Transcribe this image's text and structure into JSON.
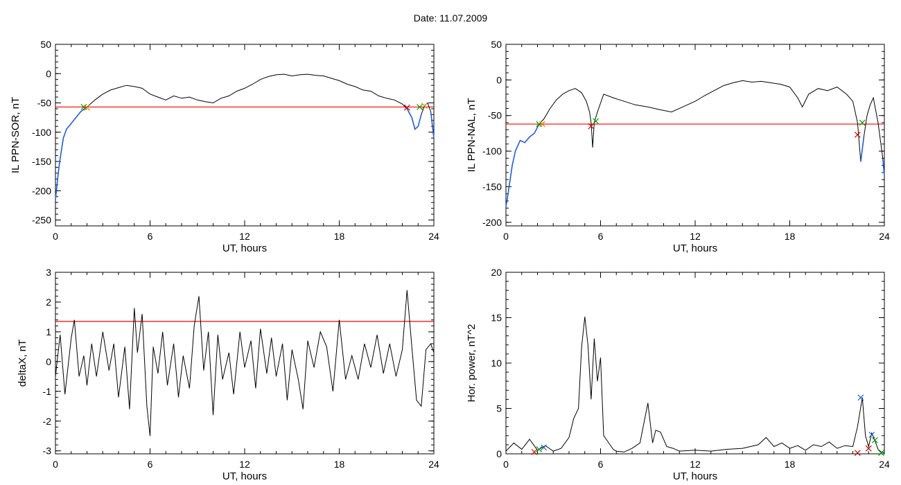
{
  "page": {
    "title": "Date:  11.07.2009"
  },
  "chart_data": [
    {
      "type": "line",
      "xlabel": "UT, hours",
      "ylabel": "IL PPN-SOR, nT",
      "xlim": [
        0,
        24
      ],
      "ylim": [
        -260,
        50
      ],
      "xticks": [
        "0",
        "6",
        "12",
        "18",
        "24"
      ],
      "yticks": [
        "50",
        "0",
        "-50",
        "-100",
        "-150",
        "-200",
        "-250"
      ],
      "threshold": -57,
      "colors": {
        "trace": "#000000",
        "below_threshold": "#1f5fd6",
        "threshold": "#ff0000",
        "marker_start": "#00a000",
        "marker_end": "#d00000",
        "marker_other": "#e08000"
      },
      "series": [
        {
          "x": [
            0,
            0.1,
            0.2,
            0.3,
            0.5,
            0.7,
            1.0,
            1.3,
            1.6,
            2.0,
            2.5,
            3.0,
            3.5,
            4.0,
            4.5,
            5.0,
            5.5,
            6.0,
            6.5,
            7.0,
            7.5,
            8.0,
            8.5,
            9.0,
            9.5,
            10.0,
            10.5,
            11.0,
            11.5,
            12.0,
            12.5,
            13.0,
            13.5,
            14.0,
            14.5,
            15.0,
            15.5,
            16.0,
            16.5,
            17.0,
            17.5,
            18.0,
            18.5,
            19.0,
            19.5,
            20.0,
            20.5,
            21.0,
            21.5,
            22.0,
            22.3,
            22.6,
            22.8,
            23.0,
            23.2,
            23.4,
            23.6,
            23.8,
            24.0
          ],
          "y": [
            -215,
            -190,
            -165,
            -145,
            -110,
            -95,
            -85,
            -75,
            -65,
            -57,
            -45,
            -35,
            -28,
            -24,
            -20,
            -22,
            -25,
            -35,
            -40,
            -45,
            -38,
            -42,
            -40,
            -45,
            -48,
            -50,
            -42,
            -38,
            -30,
            -25,
            -18,
            -10,
            -5,
            -2,
            -1,
            -4,
            -2,
            -1,
            -3,
            -4,
            -8,
            -12,
            -18,
            -22,
            -28,
            -30,
            -38,
            -42,
            -45,
            -52,
            -60,
            -75,
            -95,
            -90,
            -70,
            -55,
            -50,
            -65,
            -110
          ]
        }
      ],
      "markers": [
        {
          "x": 1.8,
          "y": -57,
          "color": "green"
        },
        {
          "x": 2.0,
          "y": -58,
          "color": "orange"
        },
        {
          "x": 22.3,
          "y": -58,
          "color": "red"
        },
        {
          "x": 23.1,
          "y": -57,
          "color": "green"
        },
        {
          "x": 23.4,
          "y": -55,
          "color": "orange"
        }
      ]
    },
    {
      "type": "line",
      "xlabel": "UT, hours",
      "ylabel": "IL PPN-NAL, nT",
      "xlim": [
        0,
        24
      ],
      "ylim": [
        -205,
        50
      ],
      "xticks": [
        "0",
        "6",
        "12",
        "18",
        "24"
      ],
      "yticks": [
        "50",
        "0",
        "-50",
        "-100",
        "-150",
        "-200"
      ],
      "threshold": -62,
      "colors": {
        "trace": "#000000",
        "below_threshold": "#1f5fd6",
        "threshold": "#ff0000",
        "marker_start": "#00a000",
        "marker_end": "#d00000",
        "marker_other": "#e08000"
      },
      "series": [
        {
          "x": [
            0,
            0.1,
            0.2,
            0.4,
            0.6,
            0.9,
            1.2,
            1.5,
            1.8,
            2.1,
            2.4,
            2.8,
            3.2,
            3.6,
            4.0,
            4.4,
            4.8,
            5.1,
            5.3,
            5.4,
            5.5,
            5.6,
            5.8,
            6.2,
            6.8,
            7.5,
            8.2,
            9.0,
            9.8,
            10.5,
            11.2,
            12.0,
            12.6,
            13.2,
            13.8,
            14.4,
            15.0,
            15.6,
            16.2,
            16.8,
            17.4,
            18.0,
            18.5,
            18.8,
            19.2,
            19.8,
            20.4,
            21.0,
            21.6,
            22.0,
            22.3,
            22.5,
            22.7,
            22.9,
            23.1,
            23.3,
            23.6,
            23.9,
            24.0
          ],
          "y": [
            -178,
            -165,
            -150,
            -120,
            -100,
            -85,
            -88,
            -80,
            -75,
            -62,
            -55,
            -40,
            -28,
            -20,
            -15,
            -12,
            -18,
            -30,
            -45,
            -60,
            -95,
            -60,
            -45,
            -20,
            -25,
            -30,
            -35,
            -38,
            -42,
            -45,
            -38,
            -30,
            -22,
            -15,
            -8,
            -4,
            -1,
            -3,
            -2,
            -4,
            -6,
            -10,
            -25,
            -38,
            -20,
            -12,
            -15,
            -10,
            -20,
            -30,
            -60,
            -115,
            -80,
            -50,
            -35,
            -25,
            -60,
            -110,
            -135
          ]
        }
      ],
      "markers": [
        {
          "x": 2.1,
          "y": -62,
          "color": "green"
        },
        {
          "x": 2.3,
          "y": -62,
          "color": "orange"
        },
        {
          "x": 5.4,
          "y": -65,
          "color": "red"
        },
        {
          "x": 5.7,
          "y": -58,
          "color": "green"
        },
        {
          "x": 22.3,
          "y": -77,
          "color": "red"
        },
        {
          "x": 22.6,
          "y": -60,
          "color": "green"
        }
      ]
    },
    {
      "type": "line",
      "xlabel": "UT, hours",
      "ylabel": "deltaX, nT",
      "xlim": [
        0,
        24
      ],
      "ylim": [
        -3.1,
        3
      ],
      "xticks": [
        "0",
        "6",
        "12",
        "18",
        "24"
      ],
      "yticks": [
        "3",
        "2",
        "1",
        "0",
        "-1",
        "-2",
        "-3"
      ],
      "threshold": 1.35,
      "colors": {
        "trace": "#000000",
        "threshold": "#ff0000"
      },
      "series": [
        {
          "x": [
            0,
            0.3,
            0.6,
            1.0,
            1.2,
            1.5,
            1.8,
            2.0,
            2.3,
            2.6,
            3.0,
            3.4,
            3.7,
            4.0,
            4.4,
            4.7,
            5.0,
            5.2,
            5.5,
            5.8,
            6.0,
            6.2,
            6.5,
            6.8,
            7.1,
            7.5,
            7.8,
            8.1,
            8.5,
            8.8,
            9.1,
            9.4,
            9.7,
            10.0,
            10.3,
            10.6,
            11.0,
            11.3,
            11.7,
            12.0,
            12.4,
            12.7,
            13.0,
            13.4,
            13.7,
            14.0,
            14.4,
            14.7,
            15.0,
            15.4,
            15.7,
            16.0,
            16.4,
            16.8,
            17.2,
            17.6,
            18.0,
            18.4,
            18.8,
            19.2,
            19.6,
            20.0,
            20.4,
            20.8,
            21.2,
            21.6,
            22.0,
            22.3,
            22.6,
            22.9,
            23.2,
            23.5,
            23.8,
            24.0
          ],
          "y": [
            -0.5,
            0.9,
            -1.1,
            0.8,
            1.4,
            -0.5,
            0.2,
            -0.8,
            0.6,
            -0.5,
            1.0,
            -0.3,
            0.6,
            -1.2,
            0.5,
            -1.6,
            1.8,
            0.3,
            1.6,
            -1.5,
            -2.5,
            0.5,
            -0.4,
            1.0,
            -0.8,
            0.6,
            -1.2,
            0.2,
            -0.9,
            1.2,
            2.2,
            -0.3,
            1.0,
            -1.8,
            0.9,
            -0.6,
            0.3,
            -1.1,
            1.0,
            -0.2,
            0.7,
            -0.9,
            1.1,
            -0.4,
            0.8,
            -0.5,
            0.6,
            -1.3,
            0.4,
            -0.6,
            -1.6,
            0.7,
            -0.2,
            1.0,
            0.5,
            -1.0,
            1.4,
            -0.6,
            0.2,
            -0.6,
            0.6,
            -0.2,
            0.9,
            -0.4,
            0.6,
            -0.5,
            0.4,
            2.4,
            0.5,
            -1.3,
            -1.5,
            0.4,
            0.6,
            0.3
          ]
        }
      ]
    },
    {
      "type": "line",
      "xlabel": "UT, hours",
      "ylabel": "Hor. power, nT^2",
      "xlim": [
        0,
        24
      ],
      "ylim": [
        0,
        20
      ],
      "xticks": [
        "0",
        "6",
        "12",
        "18",
        "24"
      ],
      "yticks": [
        "20",
        "15",
        "10",
        "5",
        "0"
      ],
      "colors": {
        "trace": "#000000",
        "marker_blue": "#1f5fd6",
        "marker_green": "#00a000",
        "marker_red": "#d00000"
      },
      "series": [
        {
          "x": [
            0,
            0.5,
            1.0,
            1.5,
            2.0,
            2.5,
            3.0,
            3.5,
            4.0,
            4.3,
            4.6,
            4.8,
            5.0,
            5.2,
            5.4,
            5.6,
            5.8,
            6.0,
            6.2,
            6.4,
            6.6,
            6.8,
            7.0,
            7.5,
            8.0,
            8.5,
            9.0,
            9.3,
            9.5,
            9.8,
            10.2,
            10.6,
            11.0,
            12.0,
            13.0,
            14.0,
            15.0,
            16.0,
            16.5,
            17.0,
            17.5,
            18.0,
            18.5,
            19.0,
            19.5,
            20.0,
            20.5,
            21.0,
            21.5,
            22.0,
            22.3,
            22.6,
            22.8,
            23.0,
            23.2,
            23.4,
            23.6,
            23.8,
            24.0
          ],
          "y": [
            0.3,
            1.2,
            0.5,
            1.6,
            0.4,
            0.9,
            0.3,
            0.6,
            1.8,
            3.9,
            5.0,
            11.8,
            15.1,
            12.0,
            6.0,
            12.7,
            8.0,
            10.6,
            2.0,
            1.5,
            1.0,
            0.5,
            0.3,
            0.2,
            0.6,
            1.2,
            5.6,
            1.2,
            2.6,
            2.4,
            0.8,
            0.6,
            0.3,
            0.4,
            0.3,
            0.5,
            0.6,
            1.0,
            1.8,
            0.8,
            1.2,
            0.6,
            0.9,
            0.4,
            1.0,
            0.8,
            1.3,
            0.6,
            0.9,
            0.8,
            3.0,
            6.2,
            2.0,
            0.8,
            2.3,
            1.5,
            0.5,
            0.2,
            0.1
          ]
        }
      ],
      "markers": [
        {
          "x": 1.8,
          "y": 0.2,
          "color": "red"
        },
        {
          "x": 2.1,
          "y": 0.5,
          "color": "green"
        },
        {
          "x": 2.4,
          "y": 0.7,
          "color": "blue"
        },
        {
          "x": 22.3,
          "y": 0.1,
          "color": "red"
        },
        {
          "x": 22.5,
          "y": 6.2,
          "color": "blue"
        },
        {
          "x": 23.0,
          "y": 0.6,
          "color": "red"
        },
        {
          "x": 23.2,
          "y": 2.1,
          "color": "blue"
        },
        {
          "x": 23.4,
          "y": 1.5,
          "color": "green"
        },
        {
          "x": 23.8,
          "y": 0.1,
          "color": "green"
        }
      ]
    }
  ]
}
